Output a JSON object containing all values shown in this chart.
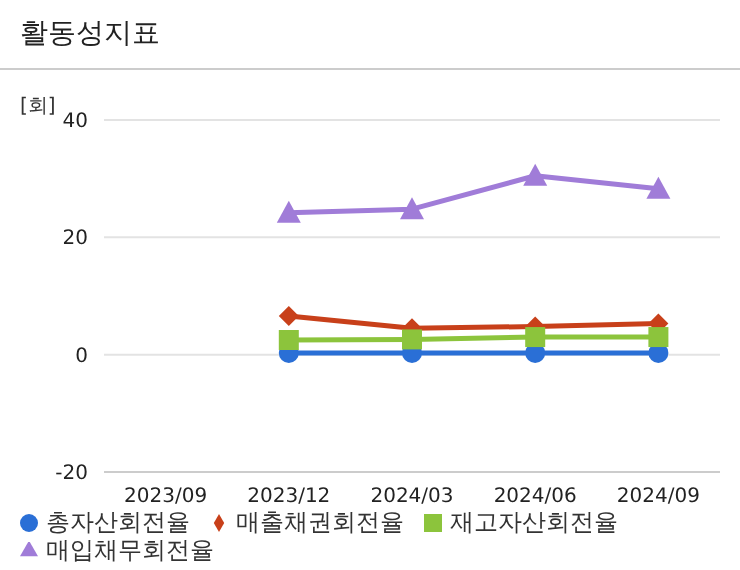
{
  "chart_data": {
    "type": "line",
    "title": "활동성지표",
    "ylabel": "[회]",
    "categories": [
      "2023/09",
      "2023/12",
      "2024/03",
      "2024/06",
      "2024/09"
    ],
    "series": [
      {
        "name": "총자산회전율",
        "color": "#2a6fd6",
        "marker": "circle",
        "values": [
          null,
          0.3,
          0.3,
          0.3,
          0.3
        ]
      },
      {
        "name": "매출채권회전율",
        "color": "#c8401a",
        "marker": "diamond",
        "values": [
          null,
          6.6,
          4.5,
          4.8,
          5.3
        ]
      },
      {
        "name": "재고자산회전율",
        "color": "#8cc43c",
        "marker": "square",
        "values": [
          null,
          2.5,
          2.6,
          3.0,
          3.0
        ]
      },
      {
        "name": "매입채무회전율",
        "color": "#a07cd8",
        "marker": "triangle",
        "values": [
          null,
          24.2,
          24.8,
          30.5,
          28.3
        ]
      }
    ],
    "ylim": [
      -20,
      40
    ],
    "yticks": [
      -20,
      0,
      20,
      40
    ],
    "grid": "y",
    "legend": "bottom"
  }
}
